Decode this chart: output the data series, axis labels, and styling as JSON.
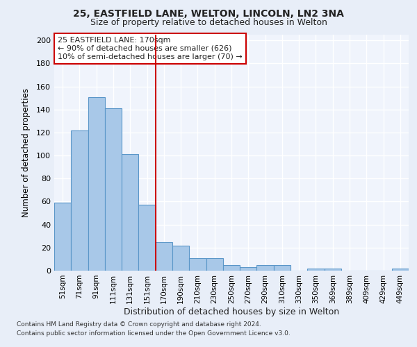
{
  "title1": "25, EASTFIELD LANE, WELTON, LINCOLN, LN2 3NA",
  "title2": "Size of property relative to detached houses in Welton",
  "xlabel": "Distribution of detached houses by size in Welton",
  "ylabel": "Number of detached properties",
  "bins": [
    "51sqm",
    "71sqm",
    "91sqm",
    "111sqm",
    "131sqm",
    "151sqm",
    "170sqm",
    "190sqm",
    "210sqm",
    "230sqm",
    "250sqm",
    "270sqm",
    "290sqm",
    "310sqm",
    "330sqm",
    "350sqm",
    "369sqm",
    "389sqm",
    "409sqm",
    "429sqm",
    "449sqm"
  ],
  "values": [
    59,
    122,
    151,
    141,
    101,
    57,
    25,
    22,
    11,
    11,
    5,
    3,
    5,
    5,
    0,
    2,
    2,
    0,
    0,
    0,
    2
  ],
  "bar_color": "#a8c8e8",
  "bar_edge_color": "#5a96c8",
  "highlight_line_index": 6,
  "highlight_label1": "25 EASTFIELD LANE: 170sqm",
  "highlight_label2": "← 90% of detached houses are smaller (626)",
  "highlight_label3": "10% of semi-detached houses are larger (70) →",
  "line_color": "#cc0000",
  "box_color": "#cc0000",
  "ylim": [
    0,
    205
  ],
  "yticks": [
    0,
    20,
    40,
    60,
    80,
    100,
    120,
    140,
    160,
    180,
    200
  ],
  "footnote1": "Contains HM Land Registry data © Crown copyright and database right 2024.",
  "footnote2": "Contains public sector information licensed under the Open Government Licence v3.0.",
  "bg_color": "#e8eef8",
  "plot_bg_color": "#f0f4fc"
}
